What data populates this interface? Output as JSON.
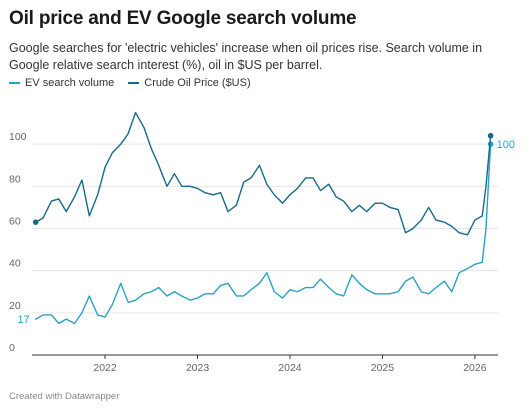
{
  "title": "Oil price and EV Google search volume",
  "subtitle": "Google searches for 'electric vehicles' increase when oil prices rise. Search volume in Google relative search interest (%), oil in $US per barrel.",
  "footer": "Created with Datawrapper",
  "colors": {
    "ev": "#2aa2c4",
    "oil": "#176a87",
    "grid": "#e6e6e6",
    "axis": "#333333"
  },
  "chart_data": {
    "type": "line",
    "xlabel": "",
    "ylabel": "",
    "xlim": [
      2021.21,
      2026.25
    ],
    "ylim": [
      0,
      120
    ],
    "y_ticks": [
      0,
      20,
      40,
      60,
      80,
      100
    ],
    "x_ticks": [
      2022,
      2023,
      2024,
      2025,
      2026
    ],
    "x_tick_labels": [
      "2022",
      "2023",
      "2024",
      "2025",
      "2026"
    ],
    "legend_position": "top-left",
    "grid": true,
    "series": [
      {
        "name": "EV search volume",
        "key": "ev",
        "end_label": "100",
        "start_label": "17",
        "x": [
          2021.25,
          2021.33,
          2021.42,
          2021.5,
          2021.58,
          2021.67,
          2021.75,
          2021.83,
          2021.92,
          2022.0,
          2022.08,
          2022.17,
          2022.25,
          2022.33,
          2022.42,
          2022.5,
          2022.58,
          2022.67,
          2022.75,
          2022.83,
          2022.92,
          2023.0,
          2023.08,
          2023.17,
          2023.25,
          2023.33,
          2023.42,
          2023.5,
          2023.58,
          2023.67,
          2023.75,
          2023.83,
          2023.92,
          2024.0,
          2024.08,
          2024.17,
          2024.25,
          2024.33,
          2024.42,
          2024.5,
          2024.58,
          2024.67,
          2024.75,
          2024.83,
          2024.92,
          2025.0,
          2025.08,
          2025.17,
          2025.25,
          2025.33,
          2025.42,
          2025.5,
          2025.58,
          2025.67,
          2025.75,
          2025.83,
          2025.92,
          2026.0,
          2026.08,
          2026.12,
          2026.17
        ],
        "values": [
          17,
          19,
          19,
          15,
          17,
          15,
          20,
          28,
          19,
          18,
          24,
          34,
          25,
          26,
          29,
          30,
          32,
          28,
          30,
          28,
          26,
          27,
          29,
          29,
          33,
          34,
          28,
          28,
          31,
          34,
          39,
          30,
          27,
          31,
          30,
          32,
          32,
          36,
          32,
          29,
          28,
          38,
          34,
          31,
          29,
          29,
          29,
          30,
          35,
          37,
          30,
          29,
          32,
          35,
          30,
          39,
          41,
          43,
          44,
          60,
          100
        ]
      },
      {
        "name": "Crude Oil Price ($US)",
        "key": "oil",
        "x": [
          2021.25,
          2021.33,
          2021.42,
          2021.5,
          2021.58,
          2021.67,
          2021.75,
          2021.83,
          2021.92,
          2022.0,
          2022.08,
          2022.17,
          2022.25,
          2022.33,
          2022.42,
          2022.5,
          2022.58,
          2022.67,
          2022.75,
          2022.83,
          2022.92,
          2023.0,
          2023.08,
          2023.17,
          2023.25,
          2023.33,
          2023.42,
          2023.5,
          2023.58,
          2023.67,
          2023.75,
          2023.83,
          2023.92,
          2024.0,
          2024.08,
          2024.17,
          2024.25,
          2024.33,
          2024.42,
          2024.5,
          2024.58,
          2024.67,
          2024.75,
          2024.83,
          2024.92,
          2025.0,
          2025.08,
          2025.17,
          2025.25,
          2025.33,
          2025.42,
          2025.5,
          2025.58,
          2025.67,
          2025.75,
          2025.83,
          2025.92,
          2026.0,
          2026.08,
          2026.12,
          2026.17
        ],
        "values": [
          63,
          65,
          73,
          74,
          68,
          75,
          83,
          66,
          76,
          89,
          96,
          100,
          105,
          115,
          108,
          98,
          90,
          80,
          86,
          80,
          80,
          79,
          77,
          76,
          77,
          68,
          71,
          82,
          84,
          90,
          81,
          76,
          72,
          76,
          79,
          84,
          84,
          78,
          81,
          75,
          73,
          68,
          71,
          68,
          72,
          72,
          70,
          69,
          58,
          60,
          64,
          70,
          64,
          63,
          61,
          58,
          57,
          64,
          66,
          80,
          104
        ]
      }
    ]
  }
}
